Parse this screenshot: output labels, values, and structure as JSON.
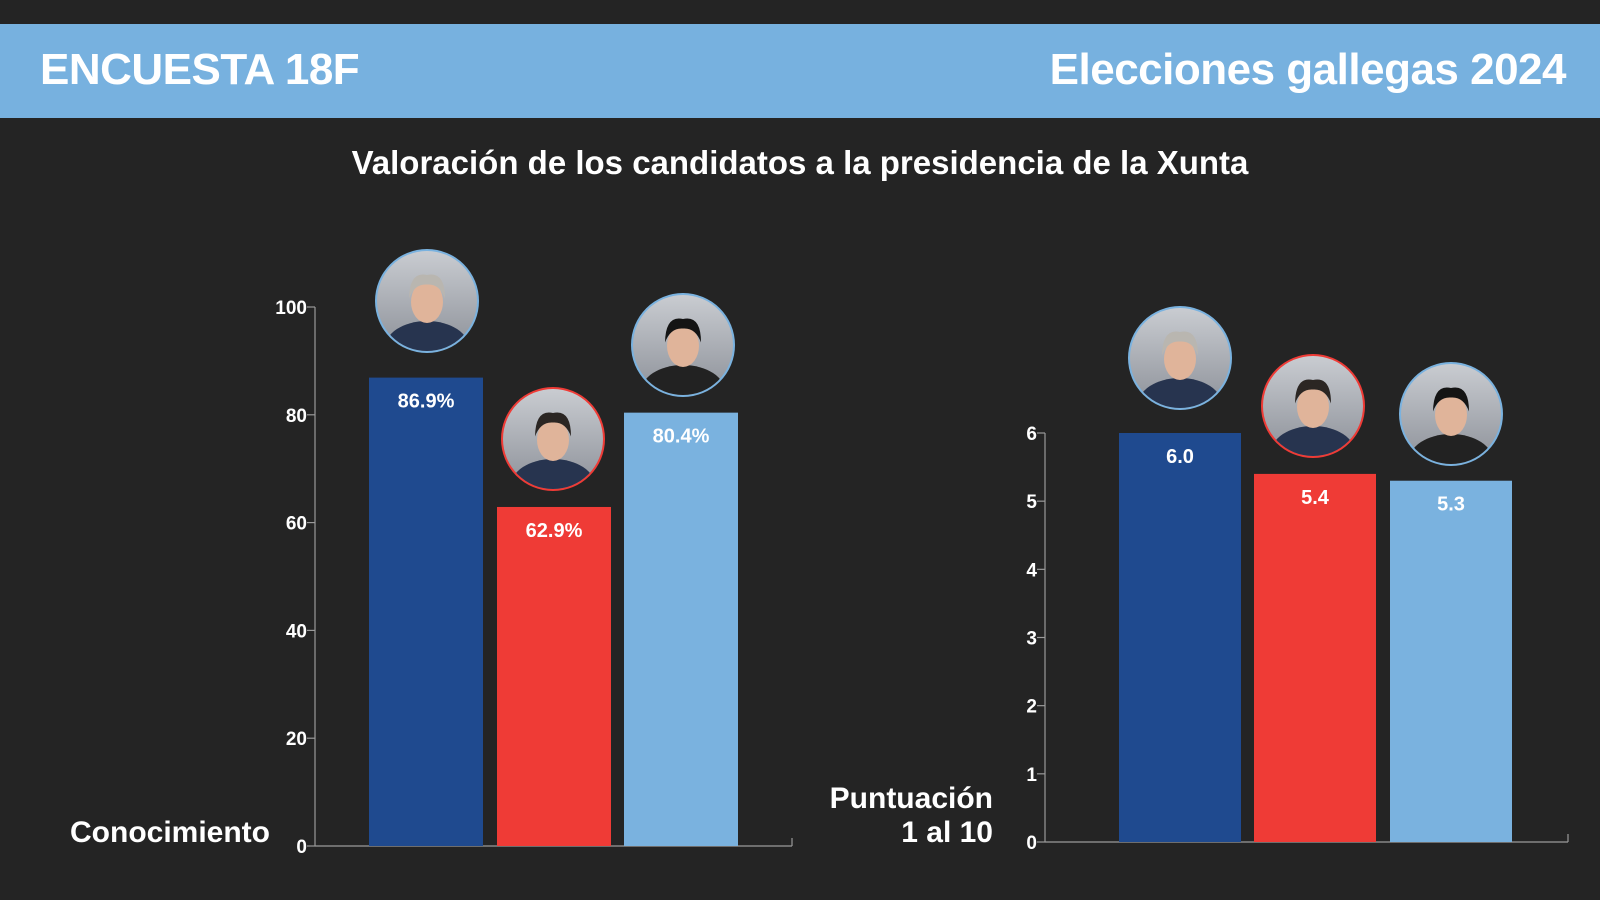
{
  "header": {
    "left": "ENCUESTA 18F",
    "right": "Elecciones gallegas 2024"
  },
  "title": "Valoración de los candidatos a la presidencia de la Xunta",
  "colors": {
    "background": "#242424",
    "header": "#77b1df",
    "candidate_1": "#1f4a8f",
    "candidate_2": "#ef3b36",
    "candidate_3": "#7ab2df"
  },
  "chart_data": [
    {
      "type": "bar",
      "ylabel": "Conocimiento",
      "ylim": [
        0,
        100
      ],
      "yticks": [
        0,
        20,
        40,
        60,
        80,
        100
      ],
      "values": [
        86.9,
        62.9,
        80.4
      ],
      "data_labels": [
        "86.9%",
        "62.9%",
        "80.4%"
      ],
      "bar_colors": [
        "#1f4a8f",
        "#ef3b36",
        "#7ab2df"
      ],
      "photo_ring_colors": [
        "#7ab2df",
        "#ef3b36",
        "#7ab2df"
      ],
      "grid": false,
      "candidate_photos": [
        "avatar",
        "avatar",
        "avatar"
      ]
    },
    {
      "type": "bar",
      "ylabel": [
        "Puntuación",
        "1 al 10"
      ],
      "ylim": [
        0,
        6
      ],
      "yticks": [
        0,
        1,
        2,
        3,
        4,
        5,
        6
      ],
      "values": [
        6.0,
        5.4,
        5.3
      ],
      "data_labels": [
        "6.0",
        "5.4",
        "5.3"
      ],
      "bar_colors": [
        "#1f4a8f",
        "#ef3b36",
        "#7ab2df"
      ],
      "photo_ring_colors": [
        "#7ab2df",
        "#ef3b36",
        "#7ab2df"
      ],
      "grid": false,
      "candidate_photos": [
        "avatar",
        "avatar",
        "avatar"
      ]
    }
  ]
}
